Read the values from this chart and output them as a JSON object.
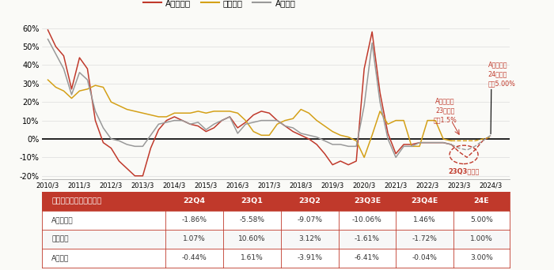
{
  "legend_labels": [
    "A股非金融",
    "金融服务",
    "A股总体"
  ],
  "line_colors": [
    "#C0392B",
    "#D4A017",
    "#999999"
  ],
  "bg_color": "#FAFAF7",
  "ylim": [
    -0.22,
    0.65
  ],
  "yticks": [
    -0.2,
    -0.1,
    0.0,
    0.1,
    0.2,
    0.3,
    0.4,
    0.5,
    0.6
  ],
  "x_labels": [
    "2010/3",
    "2011/3",
    "2012/3",
    "2013/3",
    "2014/3",
    "2015/3",
    "2016/3",
    "2017/3",
    "2018/3",
    "2019/3",
    "2020/3",
    "2021/3",
    "2022/3",
    "2023/3",
    "2024/3"
  ],
  "nf_x": [
    0.0,
    0.25,
    0.5,
    0.75,
    1.0,
    1.25,
    1.5,
    1.75,
    2.0,
    2.25,
    2.5,
    2.75,
    3.0,
    3.25,
    3.5,
    3.75,
    4.0,
    4.25,
    4.5,
    4.75,
    5.0,
    5.25,
    5.5,
    5.75,
    6.0,
    6.25,
    6.5,
    6.75,
    7.0,
    7.25,
    7.5,
    7.75,
    8.0,
    8.25,
    8.5,
    8.75,
    9.0,
    9.25,
    9.5,
    9.75,
    10.0,
    10.25,
    10.5,
    10.75,
    11.0,
    11.25,
    11.5,
    11.75,
    12.0,
    12.25,
    12.5,
    12.75
  ],
  "nf_y": [
    0.59,
    0.5,
    0.45,
    0.27,
    0.44,
    0.38,
    0.1,
    -0.02,
    -0.05,
    -0.12,
    -0.16,
    -0.2,
    -0.2,
    -0.05,
    0.05,
    0.1,
    0.12,
    0.1,
    0.08,
    0.07,
    0.04,
    0.06,
    0.1,
    0.12,
    0.06,
    0.09,
    0.13,
    0.15,
    0.14,
    0.1,
    0.07,
    0.04,
    0.02,
    0.0,
    -0.03,
    -0.08,
    -0.14,
    -0.12,
    -0.14,
    -0.12,
    0.38,
    0.58,
    0.25,
    0.03,
    -0.08,
    -0.03,
    -0.03,
    -0.02,
    -0.02,
    -0.02,
    -0.02,
    -0.03
  ],
  "nf_dash_x": [
    12.75,
    13.0,
    13.25,
    13.5,
    13.75,
    14.0
  ],
  "nf_dash_y": [
    -0.03,
    -0.07,
    -0.1,
    -0.06,
    -0.01,
    0.015
  ],
  "fi_x": [
    0.0,
    0.25,
    0.5,
    0.75,
    1.0,
    1.25,
    1.5,
    1.75,
    2.0,
    2.25,
    2.5,
    2.75,
    3.0,
    3.25,
    3.5,
    3.75,
    4.0,
    4.25,
    4.5,
    4.75,
    5.0,
    5.25,
    5.5,
    5.75,
    6.0,
    6.25,
    6.5,
    6.75,
    7.0,
    7.25,
    7.5,
    7.75,
    8.0,
    8.25,
    8.5,
    8.75,
    9.0,
    9.25,
    9.5,
    9.75,
    10.0,
    10.25,
    10.5,
    10.75,
    11.0,
    11.25,
    11.5,
    11.75,
    12.0,
    12.25,
    12.5,
    12.75
  ],
  "fi_y": [
    0.32,
    0.28,
    0.26,
    0.22,
    0.26,
    0.27,
    0.29,
    0.28,
    0.2,
    0.18,
    0.16,
    0.15,
    0.14,
    0.13,
    0.12,
    0.12,
    0.14,
    0.14,
    0.14,
    0.15,
    0.14,
    0.15,
    0.15,
    0.15,
    0.14,
    0.1,
    0.04,
    0.02,
    0.02,
    0.08,
    0.1,
    0.11,
    0.16,
    0.14,
    0.1,
    0.07,
    0.04,
    0.02,
    0.01,
    -0.01,
    -0.1,
    0.02,
    0.15,
    0.08,
    0.1,
    0.1,
    -0.04,
    -0.04,
    0.1,
    0.1,
    0.0,
    -0.01
  ],
  "fi_dash_x": [
    12.75,
    13.0,
    13.25,
    13.5,
    13.75,
    14.0
  ],
  "fi_dash_y": [
    -0.01,
    -0.01,
    -0.01,
    -0.01,
    0.0,
    0.01
  ],
  "to_x": [
    0.0,
    0.25,
    0.5,
    0.75,
    1.0,
    1.25,
    1.5,
    1.75,
    2.0,
    2.25,
    2.5,
    2.75,
    3.0,
    3.25,
    3.5,
    3.75,
    4.0,
    4.25,
    4.5,
    4.75,
    5.0,
    5.25,
    5.5,
    5.75,
    6.0,
    6.25,
    6.5,
    6.75,
    7.0,
    7.25,
    7.5,
    7.75,
    8.0,
    8.25,
    8.5,
    8.75,
    9.0,
    9.25,
    9.5,
    9.75,
    10.0,
    10.25,
    10.5,
    10.75,
    11.0,
    11.25,
    11.5,
    11.75,
    12.0,
    12.25,
    12.5,
    12.75
  ],
  "to_y": [
    0.54,
    0.46,
    0.38,
    0.24,
    0.36,
    0.32,
    0.15,
    0.06,
    0.0,
    -0.01,
    -0.03,
    -0.04,
    -0.04,
    0.02,
    0.08,
    0.09,
    0.1,
    0.1,
    0.08,
    0.09,
    0.05,
    0.08,
    0.1,
    0.12,
    0.03,
    0.08,
    0.09,
    0.1,
    0.1,
    0.1,
    0.07,
    0.06,
    0.03,
    0.02,
    0.01,
    -0.01,
    -0.03,
    -0.03,
    -0.04,
    -0.04,
    0.18,
    0.52,
    0.2,
    0.0,
    -0.1,
    -0.04,
    -0.04,
    -0.02,
    -0.02,
    -0.02,
    -0.02,
    -0.03
  ],
  "to_dash_x": [
    12.75,
    13.0,
    13.25,
    13.5,
    13.75,
    14.0
  ],
  "to_dash_y": [
    -0.03,
    -0.05,
    -0.06,
    -0.04,
    -0.01,
    0.02
  ],
  "table_header": [
    "季度累计净利润同比增速",
    "22Q4",
    "23Q1",
    "23Q2",
    "23Q3E",
    "23Q4E",
    "24E"
  ],
  "table_header_superscript": [
    false,
    false,
    false,
    false,
    true,
    true,
    true
  ],
  "table_rows": [
    [
      "A股非金融",
      "-1.86%",
      "-5.58%",
      "-9.07%",
      "-10.06%",
      "1.46%",
      "5.00%"
    ],
    [
      "金融服务",
      "1.07%",
      "10.60%",
      "3.12%",
      "-1.61%",
      "-1.72%",
      "1.00%"
    ],
    [
      "A股总体",
      "-0.44%",
      "1.61%",
      "-3.91%",
      "-6.41%",
      "-0.04%",
      "3.00%"
    ]
  ],
  "table_header_bg": "#C0392B",
  "table_header_fg": "#FFFFFF",
  "table_row_bgs": [
    "#FFFFFF",
    "#F7F7F7",
    "#FFFFFF"
  ],
  "table_border_color": "#C0392B"
}
